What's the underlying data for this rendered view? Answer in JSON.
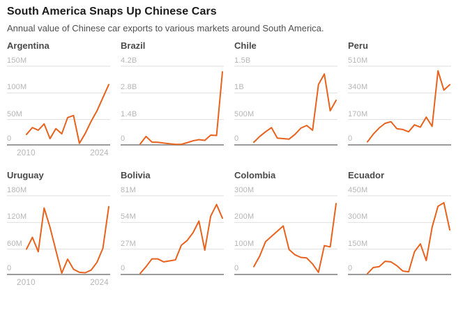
{
  "header": {
    "title": "South America Snaps Up Chinese Cars",
    "subtitle": "Annual value of Chinese car exports to various markets around South America."
  },
  "colors": {
    "line": "#E8621D",
    "grid": "#DEDEDE",
    "baseline": "#9B9B9B",
    "tick_label": "#B5B5B5",
    "chart_title": "#4A4A4A",
    "page_title": "#1C1C1C",
    "subtitle_text": "#4F4F4F"
  },
  "x_axis": {
    "start_label": "2010",
    "end_label": "2024",
    "labels_shown_on": [
      "Argentina",
      "Uruguay"
    ]
  },
  "layout_hints": {
    "arrangement": "small multiples, 2 rows x 4 columns",
    "legend": "none",
    "grid": "horizontal gridlines only",
    "x_range": [
      2010,
      2024
    ]
  },
  "chart_data": [
    {
      "type": "line",
      "title": "Argentina",
      "value_unit": "USD, millions",
      "x": [
        2010,
        2011,
        2012,
        2013,
        2014,
        2015,
        2016,
        2017,
        2018,
        2019,
        2020,
        2021,
        2022,
        2023,
        2024
      ],
      "values": [
        20,
        33,
        28,
        40,
        12,
        31,
        21,
        52,
        56,
        3,
        22,
        45,
        65,
        90,
        115
      ],
      "yticks": [
        "150M",
        "100M",
        "50M",
        "0"
      ],
      "ymax": 150,
      "show_x_labels": true
    },
    {
      "type": "line",
      "title": "Brazil",
      "value_unit": "USD, billions",
      "x": [
        2010,
        2011,
        2012,
        2013,
        2014,
        2015,
        2016,
        2017,
        2018,
        2019,
        2020,
        2021,
        2022,
        2023,
        2024
      ],
      "values": [
        0.05,
        0.45,
        0.15,
        0.14,
        0.1,
        0.06,
        0.03,
        0.03,
        0.12,
        0.22,
        0.28,
        0.24,
        0.52,
        0.5,
        3.9
      ],
      "yticks": [
        "4.2B",
        "2.8B",
        "1.4B",
        "0"
      ],
      "ymax": 4.2,
      "show_x_labels": false
    },
    {
      "type": "line",
      "title": "Chile",
      "value_unit": "USD, billions",
      "x": [
        2010,
        2011,
        2012,
        2013,
        2014,
        2015,
        2016,
        2017,
        2018,
        2019,
        2020,
        2021,
        2022,
        2023,
        2024
      ],
      "values": [
        0.05,
        0.16,
        0.25,
        0.33,
        0.13,
        0.12,
        0.11,
        0.2,
        0.32,
        0.37,
        0.28,
        1.15,
        1.35,
        0.65,
        0.85
      ],
      "yticks": [
        "1.5B",
        "1B",
        "500M",
        "0"
      ],
      "ymax": 1.5,
      "show_x_labels": false
    },
    {
      "type": "line",
      "title": "Peru",
      "value_unit": "USD, millions",
      "x": [
        2010,
        2011,
        2012,
        2013,
        2014,
        2015,
        2016,
        2017,
        2018,
        2019,
        2020,
        2021,
        2022,
        2023,
        2024
      ],
      "values": [
        20,
        70,
        110,
        140,
        150,
        105,
        100,
        85,
        130,
        115,
        180,
        120,
        480,
        355,
        390
      ],
      "yticks": [
        "510M",
        "340M",
        "170M",
        "0"
      ],
      "ymax": 510,
      "show_x_labels": false
    },
    {
      "type": "line",
      "title": "Uruguay",
      "value_unit": "USD, millions",
      "x": [
        2010,
        2011,
        2012,
        2013,
        2014,
        2015,
        2016,
        2017,
        2018,
        2019,
        2020,
        2021,
        2022,
        2023,
        2024
      ],
      "values": [
        58,
        85,
        52,
        152,
        108,
        55,
        3,
        35,
        12,
        5,
        4,
        10,
        28,
        60,
        155
      ],
      "yticks": [
        "180M",
        "120M",
        "60M",
        "0"
      ],
      "ymax": 180,
      "show_x_labels": true
    },
    {
      "type": "line",
      "title": "Bolivia",
      "value_unit": "USD, millions",
      "x": [
        2010,
        2011,
        2012,
        2013,
        2014,
        2015,
        2016,
        2017,
        2018,
        2019,
        2020,
        2021,
        2022,
        2023,
        2024
      ],
      "values": [
        1,
        8,
        16,
        16,
        13,
        14,
        15,
        30,
        35,
        43,
        55,
        25,
        60,
        72,
        58
      ],
      "yticks": [
        "81M",
        "54M",
        "27M",
        "0"
      ],
      "ymax": 81,
      "show_x_labels": false
    },
    {
      "type": "line",
      "title": "Colombia",
      "value_unit": "USD, millions",
      "x": [
        2010,
        2011,
        2012,
        2013,
        2014,
        2015,
        2016,
        2017,
        2018,
        2019,
        2020,
        2021,
        2022,
        2023,
        2024
      ],
      "values": [
        30,
        70,
        125,
        145,
        165,
        185,
        95,
        75,
        65,
        63,
        40,
        8,
        110,
        105,
        270
      ],
      "yticks": [
        "300M",
        "200M",
        "100M",
        "0"
      ],
      "ymax": 300,
      "show_x_labels": false
    },
    {
      "type": "line",
      "title": "Ecuador",
      "value_unit": "USD, millions",
      "x": [
        2010,
        2011,
        2012,
        2013,
        2014,
        2015,
        2016,
        2017,
        2018,
        2019,
        2020,
        2021,
        2022,
        2023,
        2024
      ],
      "values": [
        5,
        40,
        45,
        75,
        72,
        50,
        20,
        15,
        130,
        175,
        80,
        270,
        390,
        410,
        255
      ],
      "yticks": [
        "450M",
        "300M",
        "150M",
        "0"
      ],
      "ymax": 450,
      "show_x_labels": false
    }
  ]
}
